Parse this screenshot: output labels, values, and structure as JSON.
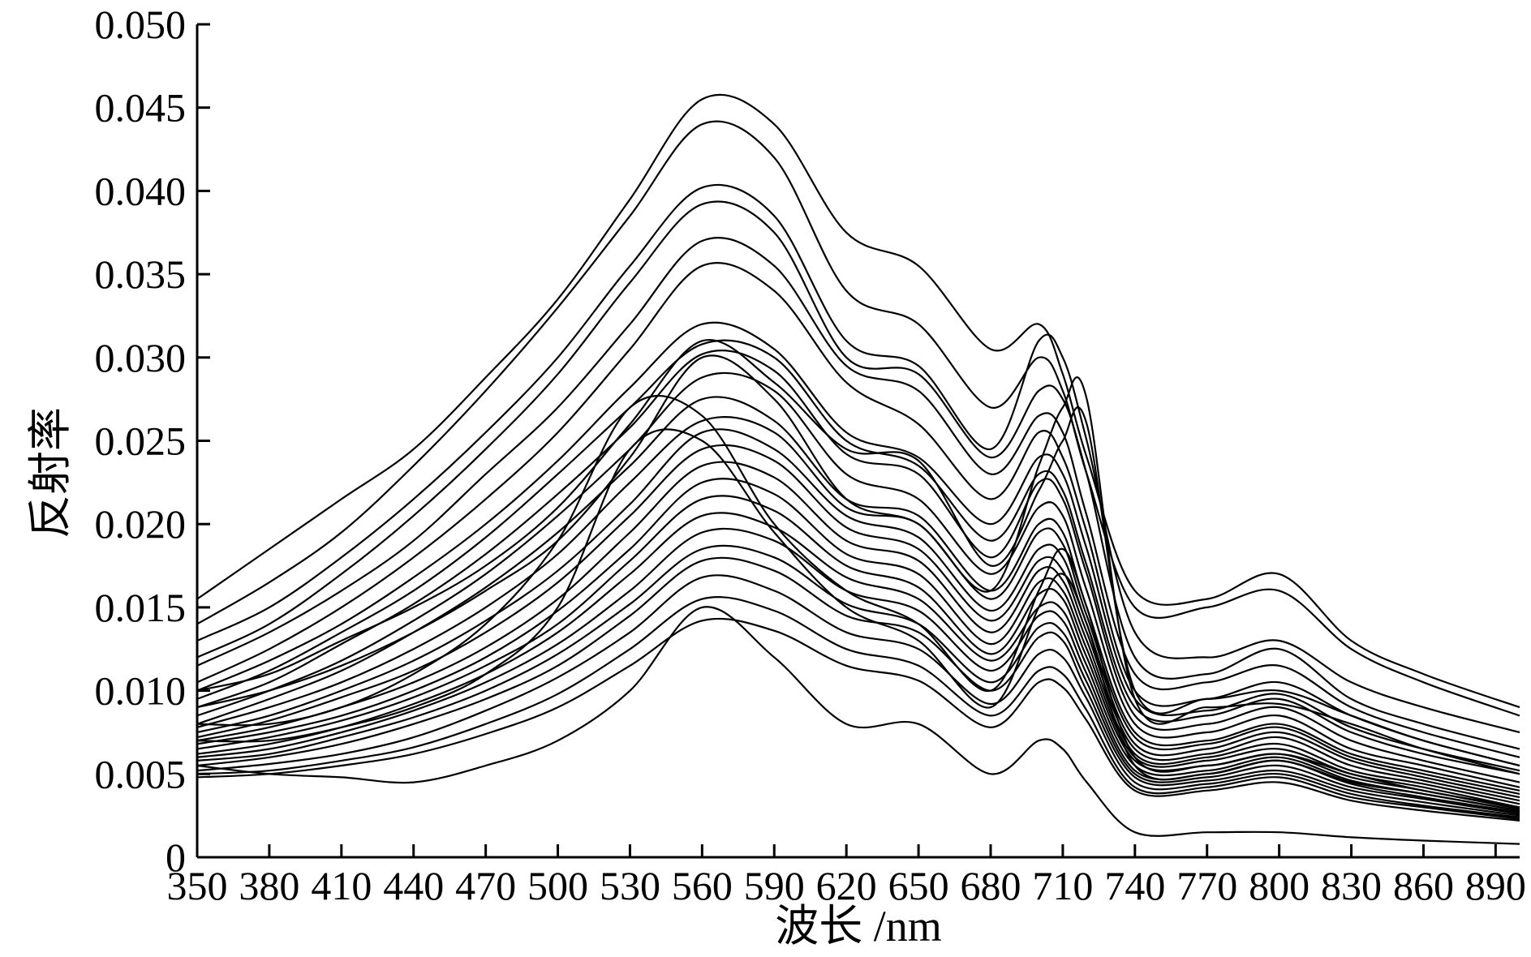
{
  "chart_data": {
    "type": "line",
    "title": "",
    "xlabel": "波长 /nm",
    "ylabel": "反射率",
    "xlim": [
      350,
      900
    ],
    "ylim": [
      0,
      0.05
    ],
    "x_ticks": [
      "350",
      "380",
      "410",
      "440",
      "470",
      "500",
      "530",
      "560",
      "590",
      "620",
      "650",
      "680",
      "710",
      "740",
      "770",
      "800",
      "830",
      "860",
      "890"
    ],
    "y_ticks": [
      "0",
      "0.005",
      "0.010",
      "0.015",
      "0.020",
      "0.025",
      "0.030",
      "0.035",
      "0.040",
      "0.045",
      "0.050"
    ],
    "x": [
      350,
      380,
      410,
      440,
      470,
      500,
      530,
      560,
      590,
      620,
      650,
      680,
      700,
      710,
      720,
      740,
      770,
      800,
      830,
      860,
      900
    ],
    "series": [
      {
        "values": [
          0.0155,
          0.0185,
          0.0215,
          0.0245,
          0.0288,
          0.0335,
          0.0395,
          0.0455,
          0.044,
          0.0375,
          0.0355,
          0.0305,
          0.032,
          0.029,
          0.024,
          0.016,
          0.0155,
          0.017,
          0.013,
          0.011,
          0.009
        ]
      },
      {
        "values": [
          0.014,
          0.0165,
          0.0195,
          0.0235,
          0.028,
          0.033,
          0.0385,
          0.044,
          0.042,
          0.034,
          0.032,
          0.027,
          0.03,
          0.028,
          0.023,
          0.015,
          0.015,
          0.016,
          0.0125,
          0.0105,
          0.0085
        ]
      },
      {
        "values": [
          0.013,
          0.015,
          0.018,
          0.0215,
          0.0255,
          0.03,
          0.0355,
          0.0402,
          0.0385,
          0.031,
          0.0295,
          0.0245,
          0.031,
          0.03,
          0.025,
          0.0135,
          0.012,
          0.013,
          0.0105,
          0.009,
          0.0075
        ]
      },
      {
        "values": [
          0.012,
          0.014,
          0.017,
          0.0205,
          0.0245,
          0.029,
          0.0345,
          0.0392,
          0.0375,
          0.03,
          0.029,
          0.024,
          0.028,
          0.0275,
          0.023,
          0.012,
          0.011,
          0.0125,
          0.0095,
          0.008,
          0.0065
        ]
      },
      {
        "values": [
          0.0115,
          0.0135,
          0.016,
          0.019,
          0.023,
          0.027,
          0.032,
          0.037,
          0.0355,
          0.0295,
          0.028,
          0.023,
          0.0265,
          0.0255,
          0.0205,
          0.011,
          0.0105,
          0.0115,
          0.009,
          0.0075,
          0.006
        ]
      },
      {
        "values": [
          0.0105,
          0.0125,
          0.015,
          0.018,
          0.0215,
          0.0255,
          0.0305,
          0.0355,
          0.034,
          0.0285,
          0.026,
          0.0215,
          0.0255,
          0.024,
          0.0195,
          0.01,
          0.0095,
          0.0105,
          0.0085,
          0.007,
          0.0055
        ]
      },
      {
        "values": [
          0.01,
          0.0118,
          0.014,
          0.0168,
          0.02,
          0.0238,
          0.0282,
          0.032,
          0.0305,
          0.0255,
          0.024,
          0.02,
          0.024,
          0.023,
          0.0185,
          0.0095,
          0.0088,
          0.0098,
          0.0078,
          0.0065,
          0.0052
        ]
      },
      {
        "values": [
          0.0095,
          0.0112,
          0.0135,
          0.016,
          0.0192,
          0.023,
          0.027,
          0.0308,
          0.03,
          0.025,
          0.0235,
          0.019,
          0.023,
          0.022,
          0.0175,
          0.009,
          0.0085,
          0.0095,
          0.0075,
          0.0062,
          0.005
        ]
      },
      {
        "values": [
          0.009,
          0.0105,
          0.0128,
          0.0152,
          0.0182,
          0.0218,
          0.0258,
          0.0302,
          0.0292,
          0.0242,
          0.023,
          0.018,
          0.0225,
          0.0215,
          0.017,
          0.0085,
          0.008,
          0.009,
          0.007,
          0.0058,
          0.0045
        ]
      },
      {
        "values": [
          0.0085,
          0.01,
          0.0118,
          0.0142,
          0.017,
          0.0205,
          0.0245,
          0.0288,
          0.028,
          0.023,
          0.0215,
          0.017,
          0.021,
          0.0205,
          0.016,
          0.008,
          0.0075,
          0.0085,
          0.0065,
          0.0055,
          0.0042
        ]
      },
      {
        "values": [
          0.008,
          0.0095,
          0.0112,
          0.0135,
          0.0162,
          0.0195,
          0.0235,
          0.0275,
          0.0262,
          0.0215,
          0.0205,
          0.016,
          0.02,
          0.0195,
          0.015,
          0.0075,
          0.007,
          0.008,
          0.0062,
          0.0052,
          0.004
        ]
      },
      {
        "values": [
          0.0078,
          0.009,
          0.0105,
          0.0125,
          0.015,
          0.0182,
          0.0225,
          0.0262,
          0.0255,
          0.021,
          0.02,
          0.0155,
          0.0195,
          0.0188,
          0.0145,
          0.0072,
          0.0068,
          0.0078,
          0.006,
          0.005,
          0.0038
        ]
      },
      {
        "values": [
          0.0075,
          0.0085,
          0.01,
          0.0118,
          0.0142,
          0.0172,
          0.0212,
          0.0255,
          0.0245,
          0.0205,
          0.0192,
          0.0148,
          0.0185,
          0.018,
          0.014,
          0.0068,
          0.0065,
          0.0075,
          0.0058,
          0.0048,
          0.0036
        ]
      },
      {
        "values": [
          0.0072,
          0.0082,
          0.0096,
          0.0112,
          0.0135,
          0.0165,
          0.0205,
          0.0245,
          0.0238,
          0.0198,
          0.0185,
          0.0142,
          0.0178,
          0.0172,
          0.0135,
          0.0065,
          0.0062,
          0.0072,
          0.0055,
          0.0046,
          0.0034
        ]
      },
      {
        "values": [
          0.007,
          0.0078,
          0.009,
          0.0105,
          0.0126,
          0.0155,
          0.0195,
          0.0235,
          0.0228,
          0.019,
          0.0178,
          0.0135,
          0.0172,
          0.0166,
          0.013,
          0.0062,
          0.006,
          0.0068,
          0.0052,
          0.0044,
          0.0032
        ]
      },
      {
        "values": [
          0.0068,
          0.0075,
          0.0085,
          0.01,
          0.012,
          0.0148,
          0.0185,
          0.0225,
          0.0218,
          0.0182,
          0.017,
          0.0128,
          0.0165,
          0.016,
          0.0125,
          0.006,
          0.0058,
          0.0065,
          0.005,
          0.0042,
          0.003
        ]
      },
      {
        "values": [
          0.0065,
          0.0072,
          0.0082,
          0.0096,
          0.0115,
          0.014,
          0.0178,
          0.0215,
          0.0208,
          0.0175,
          0.0162,
          0.0122,
          0.0158,
          0.0155,
          0.012,
          0.0058,
          0.0055,
          0.0062,
          0.0048,
          0.004,
          0.0029
        ]
      },
      {
        "values": [
          0.0062,
          0.0068,
          0.0078,
          0.0092,
          0.011,
          0.0135,
          0.017,
          0.0205,
          0.0198,
          0.0168,
          0.0155,
          0.0118,
          0.015,
          0.0148,
          0.0115,
          0.0055,
          0.0052,
          0.006,
          0.0046,
          0.0038,
          0.0028
        ]
      },
      {
        "values": [
          0.006,
          0.0065,
          0.0075,
          0.0088,
          0.0105,
          0.0128,
          0.016,
          0.0195,
          0.019,
          0.016,
          0.0148,
          0.0112,
          0.0145,
          0.0142,
          0.011,
          0.0052,
          0.005,
          0.0058,
          0.0044,
          0.0036,
          0.0027
        ]
      },
      {
        "values": [
          0.0058,
          0.0062,
          0.0072,
          0.0084,
          0.01,
          0.0122,
          0.0152,
          0.0185,
          0.018,
          0.0152,
          0.014,
          0.0105,
          0.0138,
          0.0135,
          0.0105,
          0.005,
          0.0048,
          0.0055,
          0.0042,
          0.0035,
          0.0026
        ]
      },
      {
        "values": [
          0.0055,
          0.006,
          0.0068,
          0.008,
          0.0095,
          0.0115,
          0.0145,
          0.0178,
          0.0172,
          0.0145,
          0.0135,
          0.01,
          0.0132,
          0.013,
          0.01,
          0.0048,
          0.0046,
          0.0052,
          0.004,
          0.0033,
          0.0025
        ]
      },
      {
        "values": [
          0.0052,
          0.0056,
          0.0062,
          0.0072,
          0.0088,
          0.0108,
          0.0135,
          0.0168,
          0.016,
          0.0135,
          0.0125,
          0.0092,
          0.0122,
          0.012,
          0.0095,
          0.0045,
          0.0044,
          0.005,
          0.0038,
          0.0031,
          0.0024
        ]
      },
      {
        "values": [
          0.005,
          0.0052,
          0.0058,
          0.0066,
          0.008,
          0.0098,
          0.0125,
          0.0155,
          0.0148,
          0.0125,
          0.0115,
          0.0085,
          0.0112,
          0.011,
          0.0088,
          0.0042,
          0.0042,
          0.0048,
          0.0036,
          0.003,
          0.0023
        ]
      },
      {
        "values": [
          0.0048,
          0.005,
          0.0055,
          0.0062,
          0.0074,
          0.009,
          0.0115,
          0.0142,
          0.0136,
          0.0115,
          0.0106,
          0.0078,
          0.0105,
          0.0102,
          0.0082,
          0.004,
          0.004,
          0.0045,
          0.0034,
          0.0028,
          0.0022
        ]
      },
      {
        "values": [
          0.0055,
          0.005,
          0.0048,
          0.0045,
          0.0055,
          0.007,
          0.01,
          0.015,
          0.012,
          0.008,
          0.008,
          0.005,
          0.007,
          0.0065,
          0.0045,
          0.0015,
          0.0015,
          0.0015,
          0.0012,
          0.001,
          0.0008
        ]
      },
      {
        "values": [
          0.01,
          0.011,
          0.013,
          0.015,
          0.0175,
          0.021,
          0.026,
          0.031,
          0.0285,
          0.0245,
          0.0238,
          0.0175,
          0.022,
          0.025,
          0.026,
          0.01,
          0.0095,
          0.01,
          0.0085,
          0.007,
          0.0055
        ]
      },
      {
        "values": [
          0.009,
          0.01,
          0.0115,
          0.0135,
          0.016,
          0.019,
          0.024,
          0.03,
          0.0275,
          0.0215,
          0.02,
          0.016,
          0.0235,
          0.027,
          0.0275,
          0.0095,
          0.009,
          0.0092,
          0.008,
          0.0065,
          0.005
        ]
      },
      {
        "values": [
          0.008,
          0.008,
          0.009,
          0.011,
          0.014,
          0.019,
          0.027,
          0.0265,
          0.02,
          0.016,
          0.014,
          0.01,
          0.016,
          0.0185,
          0.015,
          0.006,
          0.0055,
          0.0062,
          0.005,
          0.004,
          0.003
        ]
      },
      {
        "values": [
          0.007,
          0.007,
          0.0078,
          0.009,
          0.011,
          0.015,
          0.0245,
          0.025,
          0.0195,
          0.015,
          0.013,
          0.009,
          0.015,
          0.017,
          0.014,
          0.0055,
          0.005,
          0.0058,
          0.0045,
          0.0038,
          0.0028
        ]
      }
    ]
  }
}
